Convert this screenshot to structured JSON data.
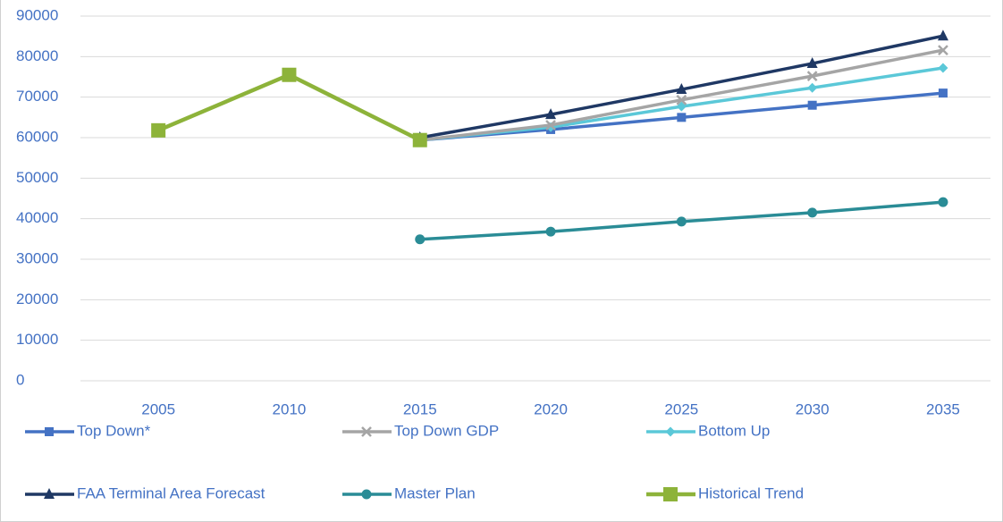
{
  "chart_data": {
    "type": "line",
    "categories": [
      "2005",
      "2010",
      "2015",
      "2020",
      "2025",
      "2030",
      "2035"
    ],
    "series": [
      {
        "name": "Top Down*",
        "color": "#4472c4",
        "marker": "square",
        "values": [
          null,
          null,
          59400,
          62000,
          65000,
          68000,
          71000
        ]
      },
      {
        "name": "Top Down GDP",
        "color": "#a5a5a5",
        "marker": "x",
        "values": [
          null,
          null,
          59400,
          63100,
          69300,
          75200,
          81600
        ]
      },
      {
        "name": "Bottom Up",
        "color": "#5bc8d8",
        "marker": "diamond",
        "values": [
          null,
          null,
          59400,
          62600,
          67700,
          72300,
          77200
        ]
      },
      {
        "name": "FAA Terminal Area Forecast",
        "color": "#1f3864",
        "marker": "triangle",
        "values": [
          null,
          null,
          60000,
          65700,
          71900,
          78300,
          85100
        ]
      },
      {
        "name": "Master Plan",
        "color": "#2a8c96",
        "marker": "circle",
        "values": [
          null,
          null,
          34900,
          36800,
          39300,
          41500,
          44100
        ]
      },
      {
        "name": "Historical Trend",
        "color": "#8db33a",
        "marker": "big-square",
        "values": [
          61800,
          75500,
          59400,
          null,
          null,
          null,
          null
        ]
      }
    ],
    "ylim": [
      0,
      90000
    ],
    "yticks": [
      0,
      10000,
      20000,
      30000,
      40000,
      50000,
      60000,
      70000,
      80000,
      90000
    ],
    "grid": true,
    "legend": "bottom"
  }
}
